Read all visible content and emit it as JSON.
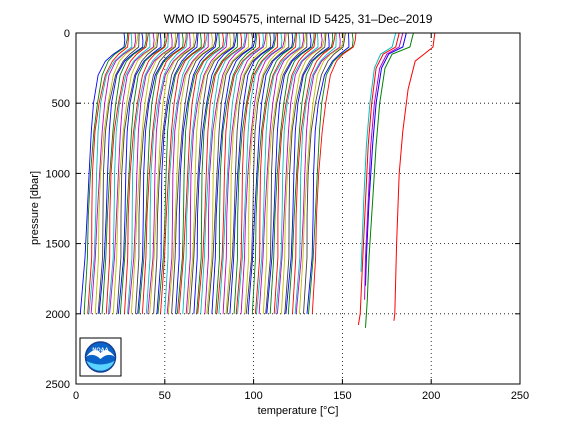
{
  "chart_data": {
    "type": "line",
    "title": "WMO ID 5904575, internal ID 5425, 31–Dec–2019",
    "xlabel": "temperature [°C]",
    "ylabel": "pressure [dbar]",
    "xlim": [
      0,
      250
    ],
    "ylim": [
      0,
      2500
    ],
    "y_reversed": true,
    "grid": true,
    "grid_style": "dotted",
    "x_ticks": [
      "0",
      "50",
      "100",
      "150",
      "200",
      "250"
    ],
    "y_ticks": [
      "0",
      "500",
      "1000",
      "1500",
      "2000",
      "2500"
    ],
    "profile_note": "Many offset temperature profiles; each profile is a warm surface layer (~0–150 dbar) followed by a cooling column to ~2000 dbar.",
    "profile_shape": {
      "pressure": [
        0,
        50,
        100,
        150,
        200,
        300,
        500,
        700,
        1000,
        1300,
        1600,
        2000
      ],
      "temperature_delta": [
        24,
        24,
        23.5,
        18,
        14,
        10,
        7,
        5.2,
        3.8,
        3.0,
        2.4,
        0
      ]
    },
    "series_offsets": [
      3,
      4.5,
      6,
      7.5,
      9,
      10.5,
      12,
      13.5,
      15,
      16.5,
      18,
      19.5,
      21,
      22.5,
      24,
      25.5,
      27,
      28.5,
      30,
      31.5,
      33,
      34.5,
      36,
      37.5,
      39,
      40.5,
      42,
      43.5,
      45,
      46.5,
      48,
      49.5,
      51,
      52.5,
      54,
      55.5,
      57,
      58.5,
      60,
      61.5,
      63,
      64.5,
      66,
      67.5,
      69,
      70.5,
      72,
      73.5,
      75,
      76.5,
      78,
      79.5,
      81,
      82.5,
      84,
      85.5,
      87,
      88.5,
      90,
      91.5,
      93,
      94.5,
      96,
      97.5,
      99,
      100.5,
      102,
      103.5,
      105,
      106.5,
      108,
      109.5,
      111,
      112.5,
      114,
      115.5,
      117,
      118.5,
      120,
      121.5,
      123,
      124.5,
      126,
      127.5,
      130,
      131.5,
      133
    ],
    "series_colors": [
      "#0000ff",
      "#008000",
      "#ff0000",
      "#00bfbf",
      "#bf00bf",
      "#bfbf00",
      "#404040"
    ],
    "extra_series": [
      {
        "color": "#ff0000",
        "pressure": [
          0,
          100,
          150,
          200,
          400,
          700,
          1000,
          1500,
          2000,
          2050
        ],
        "temperature": [
          202,
          201,
          196,
          191,
          187,
          184,
          182,
          180.5,
          179.5,
          179
        ]
      },
      {
        "color": "#008000",
        "pressure": [
          0,
          100,
          150,
          250,
          500,
          800,
          1200,
          1600,
          1900,
          2100
        ],
        "temperature": [
          190,
          188,
          178,
          174,
          171,
          169,
          167,
          165,
          164,
          163
        ]
      },
      {
        "color": "#0000ff",
        "pressure": [
          0,
          100,
          150,
          250,
          500,
          800,
          1200,
          1600,
          1800
        ],
        "temperature": [
          186,
          184,
          176,
          172,
          169,
          167,
          165,
          163.5,
          163
        ]
      },
      {
        "color": "#bf00bf",
        "pressure": [
          0,
          100,
          150,
          250,
          500,
          800,
          1200,
          1600,
          1900
        ],
        "temperature": [
          184,
          182,
          175,
          171,
          168,
          166,
          164.5,
          163,
          162.5
        ]
      },
      {
        "color": "#ff0000",
        "pressure": [
          0,
          100,
          150,
          250,
          500,
          800,
          1200,
          1600,
          2000,
          2080
        ],
        "temperature": [
          182,
          180,
          173,
          169,
          166.5,
          164.5,
          163,
          161.5,
          160,
          159
        ]
      },
      {
        "color": "#00bfbf",
        "pressure": [
          0,
          100,
          150,
          250,
          500,
          800,
          1200,
          1700
        ],
        "temperature": [
          180,
          178,
          171.5,
          168,
          165.5,
          163.5,
          162,
          160.5
        ]
      }
    ]
  },
  "logo": {
    "text": "NOAA"
  }
}
